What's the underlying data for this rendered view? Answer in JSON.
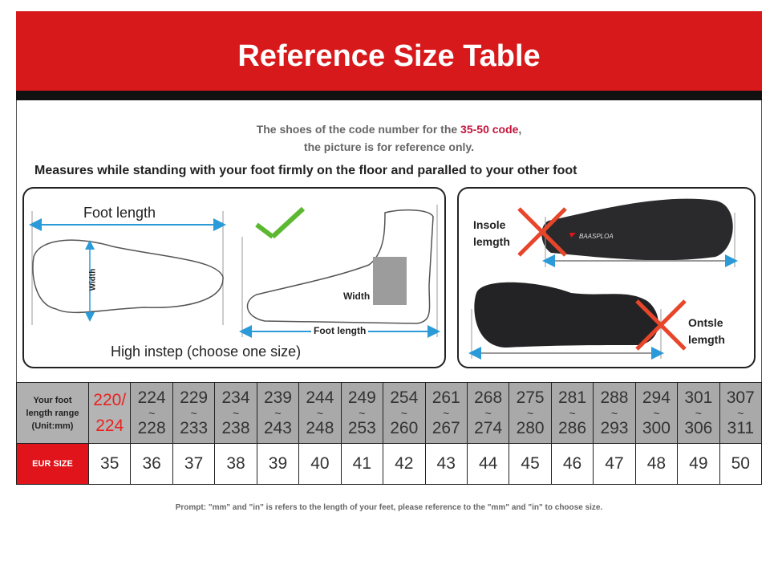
{
  "header": {
    "title": "Reference Size Table"
  },
  "intro": {
    "line1_prefix": "The shoes of the code number for the ",
    "line1_highlight": "35-50 code",
    "line1_suffix": ",",
    "line2": "the picture is for reference only."
  },
  "measure_text": "Measures while standing with your foot firmly on the floor and paralled to your other foot",
  "left_panel": {
    "foot_length": "Foot length",
    "width": "Width",
    "width2": "Width",
    "foot_length2": "Foot length",
    "caption": "High instep  (choose one size)"
  },
  "right_panel": {
    "insole_label_1": "Insole",
    "insole_label_2": "lemgth",
    "outsole_label_1": "Ontsle",
    "outsole_label_2": "lemgth",
    "brand": "BAASPLOA"
  },
  "table": {
    "row1_header": [
      "Your foot",
      "length range",
      "(Unit:mm)"
    ],
    "row2_header": "EUR SIZE",
    "first_range": {
      "top": "220/",
      "bottom": "224"
    },
    "ranges": [
      [
        "224",
        "228"
      ],
      [
        "229",
        "233"
      ],
      [
        "234",
        "238"
      ],
      [
        "239",
        "243"
      ],
      [
        "244",
        "248"
      ],
      [
        "249",
        "253"
      ],
      [
        "254",
        "260"
      ],
      [
        "261",
        "267"
      ],
      [
        "268",
        "274"
      ],
      [
        "275",
        "280"
      ],
      [
        "281",
        "286"
      ],
      [
        "288",
        "293"
      ],
      [
        "294",
        "300"
      ],
      [
        "301",
        "306"
      ],
      [
        "307",
        "311"
      ]
    ],
    "sizes": [
      "35",
      "36",
      "37",
      "38",
      "39",
      "40",
      "41",
      "42",
      "43",
      "44",
      "45",
      "46",
      "47",
      "48",
      "49",
      "50"
    ]
  },
  "prompt": "Prompt: \"mm\" and \"in\" is refers to the length of your feet, please reference to the \"mm\" and \"in\" to choose size.",
  "colors": {
    "brand_red": "#d7191b",
    "highlight": "#c4143c",
    "arrow_blue": "#2a9ad8",
    "cross_red": "#e8452a",
    "check_green": "#5cb830"
  }
}
